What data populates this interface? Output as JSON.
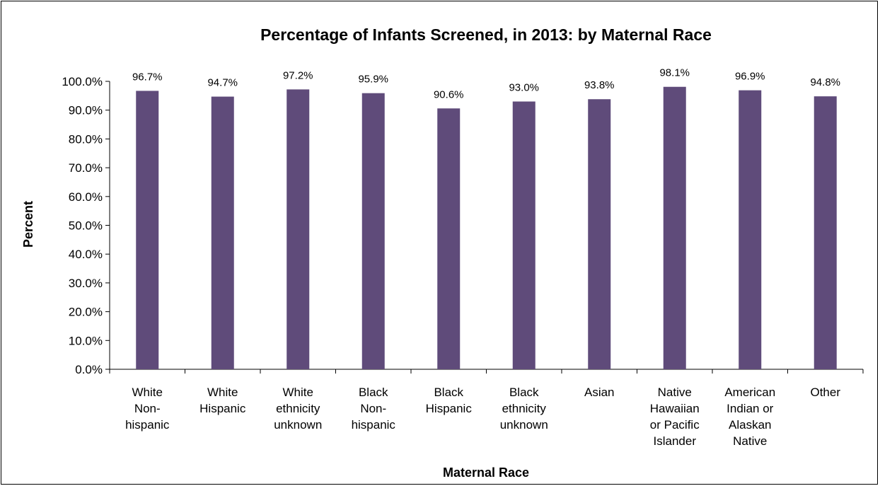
{
  "chart_data": {
    "type": "bar",
    "title": "Percentage of Infants Screened, in 2013: by Maternal Race",
    "xlabel": "Maternal Race",
    "ylabel": "Percent",
    "ylim": [
      0,
      100
    ],
    "yticks": [
      "0.0%",
      "10.0%",
      "20.0%",
      "30.0%",
      "40.0%",
      "50.0%",
      "60.0%",
      "70.0%",
      "80.0%",
      "90.0%",
      "100.0%"
    ],
    "grid": false,
    "legend": "none",
    "bar_color": "#5F4B7A",
    "categories": [
      [
        "White",
        "Non-",
        "hispanic"
      ],
      [
        "White",
        "Hispanic"
      ],
      [
        "White",
        "ethnicity",
        "unknown"
      ],
      [
        "Black",
        "Non-",
        "hispanic"
      ],
      [
        "Black",
        "Hispanic"
      ],
      [
        "Black",
        "ethnicity",
        "unknown"
      ],
      [
        "Asian"
      ],
      [
        "Native",
        "Hawaiian",
        "or Pacific",
        "Islander"
      ],
      [
        "American",
        "Indian or",
        "Alaskan",
        "Native"
      ],
      [
        "Other"
      ]
    ],
    "values": [
      96.7,
      94.7,
      97.2,
      95.9,
      90.6,
      93.0,
      93.8,
      98.1,
      96.9,
      94.8
    ],
    "data_labels": [
      "96.7%",
      "94.7%",
      "97.2%",
      "95.9%",
      "90.6%",
      "93.0%",
      "93.8%",
      "98.1%",
      "96.9%",
      "94.8%"
    ]
  }
}
